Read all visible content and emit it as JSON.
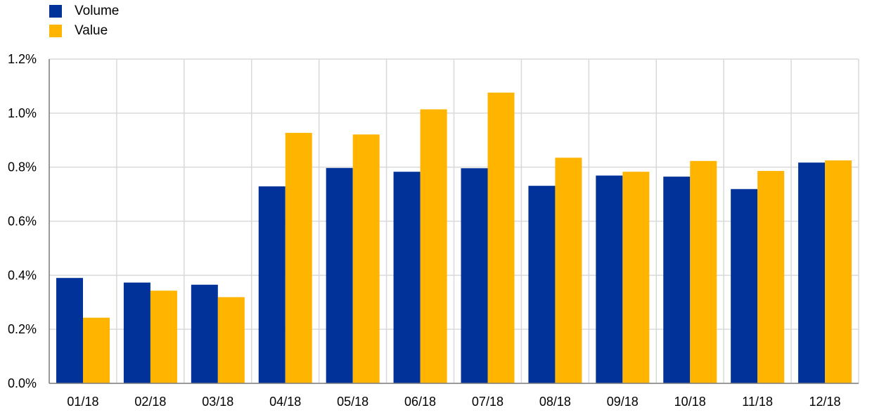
{
  "chart_data": {
    "type": "bar",
    "title": "",
    "xlabel": "",
    "ylabel": "",
    "categories": [
      "01/18",
      "02/18",
      "03/18",
      "04/18",
      "05/18",
      "06/18",
      "07/18",
      "08/18",
      "09/18",
      "10/18",
      "11/18",
      "12/18"
    ],
    "series": [
      {
        "name": "Volume",
        "color": "#003299",
        "values": [
          0.39,
          0.373,
          0.365,
          0.729,
          0.797,
          0.783,
          0.796,
          0.731,
          0.769,
          0.765,
          0.719,
          0.817
        ]
      },
      {
        "name": "Value",
        "color": "#FFB400",
        "values": [
          0.243,
          0.343,
          0.319,
          0.927,
          0.921,
          1.014,
          1.076,
          0.835,
          0.783,
          0.823,
          0.786,
          0.825
        ]
      }
    ],
    "ylim": [
      0,
      1.2
    ],
    "yticks": [
      0,
      0.2,
      0.4,
      0.6,
      0.8,
      1.0,
      1.2
    ],
    "ytick_labels": [
      "0.0%",
      "0.2%",
      "0.4%",
      "0.6%",
      "0.8%",
      "1.0%",
      "1.2%"
    ],
    "grid": true,
    "legend_position": "top-left"
  }
}
